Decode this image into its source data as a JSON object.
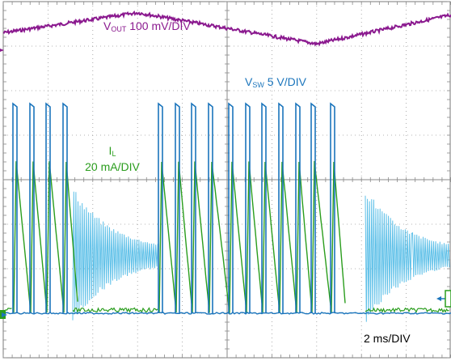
{
  "chart_data": {
    "type": "line",
    "title": "",
    "grid": true,
    "divisions": {
      "horizontal": 10,
      "vertical": 8
    },
    "timebase": {
      "value": 2,
      "unit": "ms",
      "label": "2 ms/DIV"
    },
    "channels": [
      {
        "id": "vout",
        "name_main": "V",
        "name_sub": "OUT",
        "scale": "100 mV/DIV",
        "color": "#8b1a8f",
        "description_points_div": {
          "x": [
            0,
            3,
            7,
            10
          ],
          "y": [
            3.3,
            3.75,
            3.05,
            3.7
          ]
        }
      },
      {
        "id": "vsw",
        "name_main": "V",
        "name_sub": "SW",
        "scale": "5 V/DIV",
        "color": "#1b75bc",
        "pulses_in_burst_1": 4,
        "pulses_in_burst_2": 11,
        "ringing_color": "#5ec0e8"
      },
      {
        "id": "il",
        "name_main": "I",
        "name_sub": "L",
        "scale": "20 mA/DIV",
        "color": "#2a9d1d"
      }
    ],
    "marker_color": "#1b75bc"
  }
}
